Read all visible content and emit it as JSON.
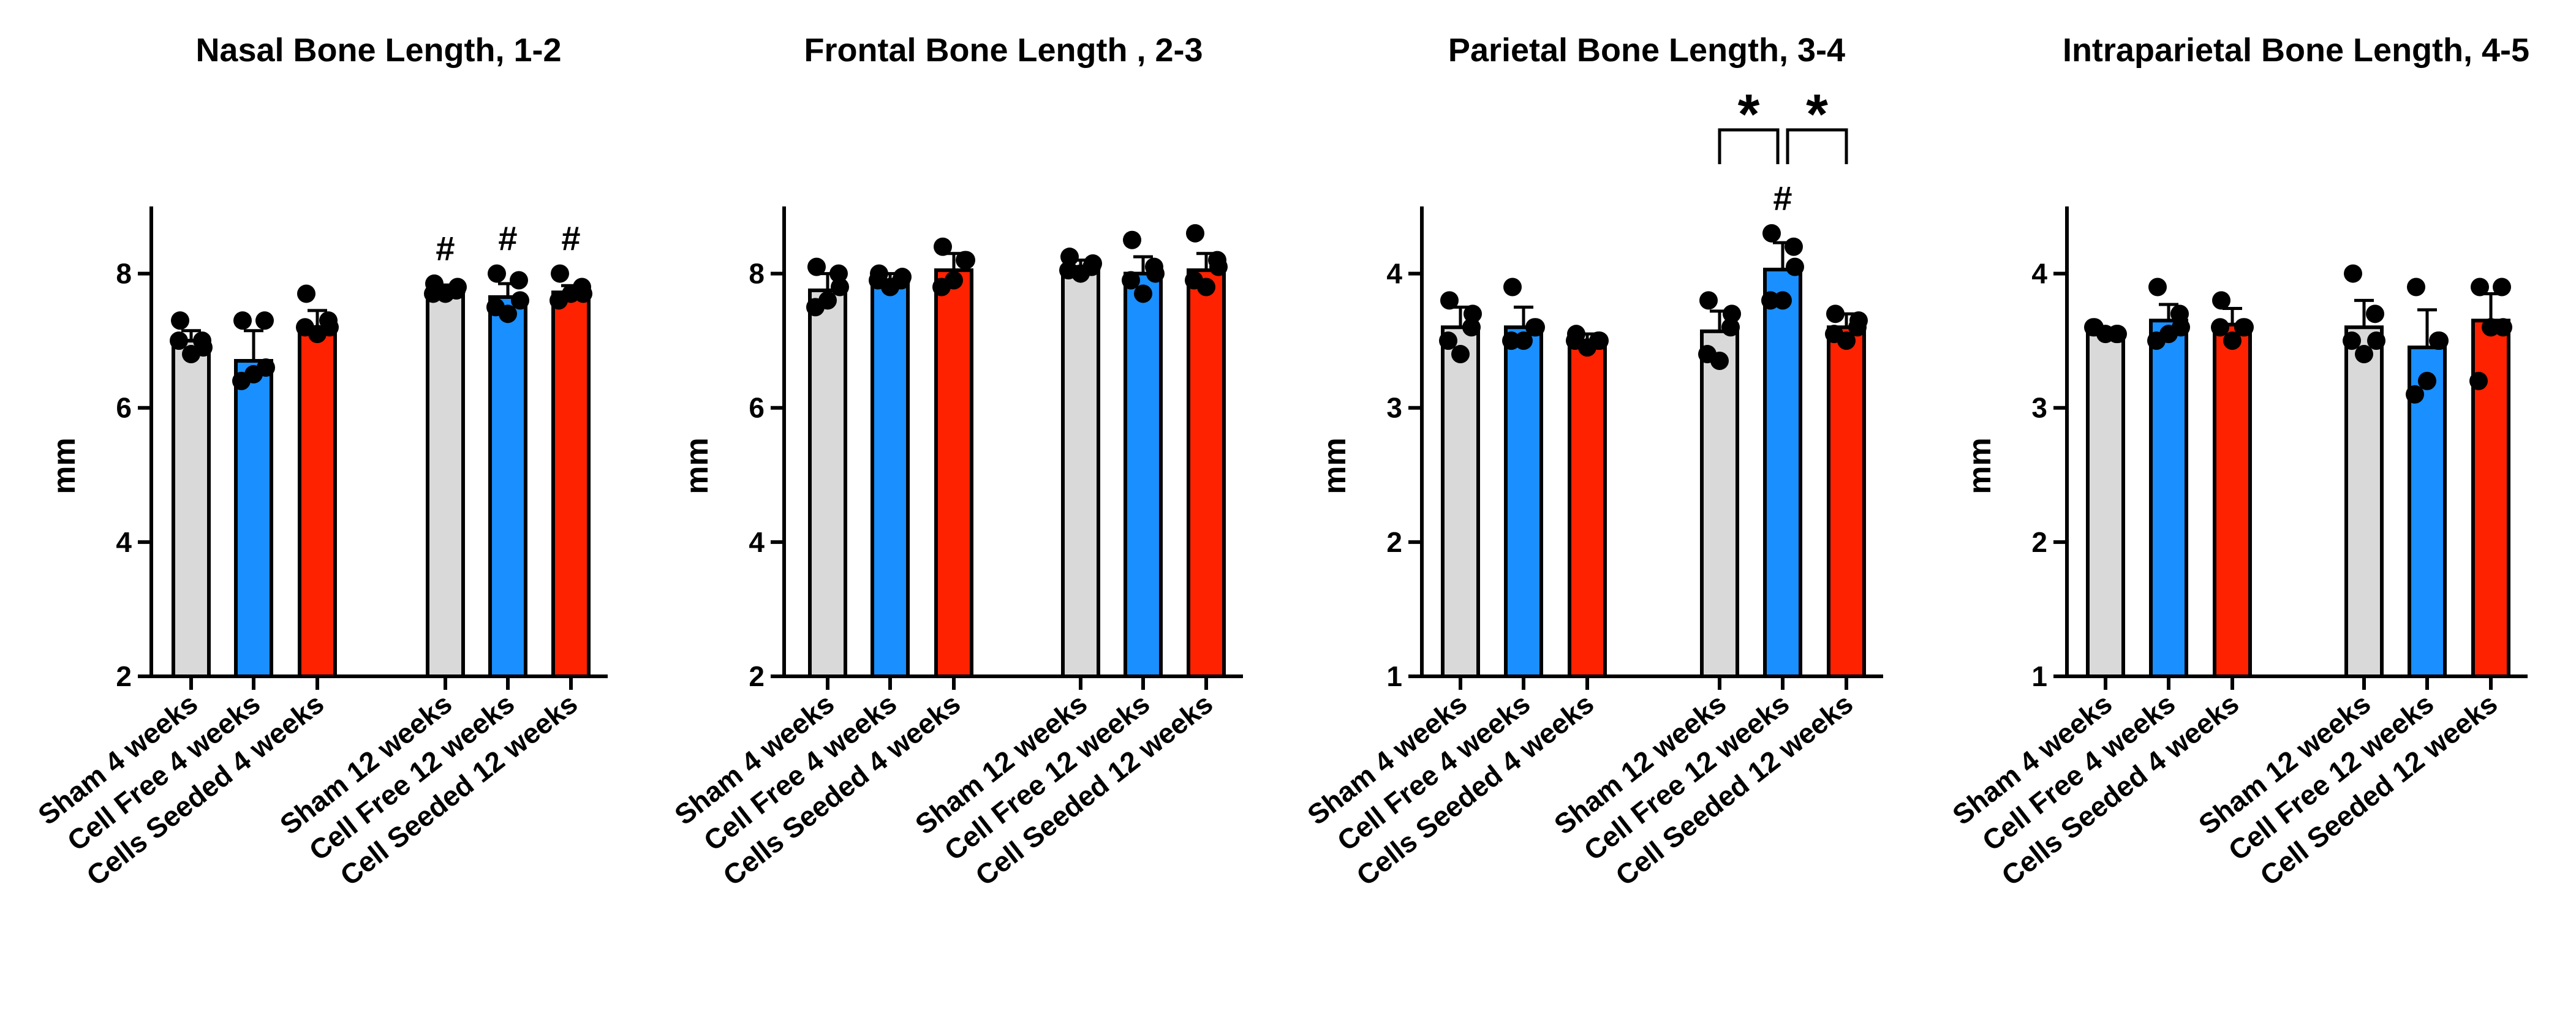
{
  "colors": {
    "sham": "#d9d9d9",
    "cell_free": "#1a8fff",
    "cells_seeded": "#ff2200",
    "outline": "#000000",
    "point": "#000000"
  },
  "chart_data": [
    {
      "type": "bar",
      "title": "Nasal Bone Length, 1-2",
      "ylabel": "mm",
      "ylim": [
        2,
        9
      ],
      "yticks": [
        "2",
        "4",
        "6",
        "8"
      ],
      "categories": [
        "Sham 4 weeks",
        "Cell Free 4 weeks",
        "Cells Seeded 4 weeks",
        "Sham 12 weeks",
        "Cell Free 12 weeks",
        "Cell Seeded 12 weeks"
      ],
      "bar_colors": [
        "sham",
        "cell_free",
        "cells_seeded",
        "sham",
        "cell_free",
        "cells_seeded"
      ],
      "values": [
        7.0,
        6.7,
        7.2,
        7.75,
        7.65,
        7.72
      ],
      "errors": [
        0.15,
        0.45,
        0.25,
        0.08,
        0.2,
        0.1
      ],
      "points": [
        [
          7.3,
          7.0,
          6.8,
          7.0,
          6.9
        ],
        [
          7.3,
          7.3,
          6.5,
          6.4,
          6.6
        ],
        [
          7.7,
          7.3,
          7.1,
          7.2,
          7.2
        ],
        [
          7.85,
          7.75,
          7.7,
          7.7,
          7.8
        ],
        [
          8.0,
          7.9,
          7.4,
          7.5,
          7.6
        ],
        [
          8.0,
          7.8,
          7.7,
          7.6,
          7.7
        ]
      ],
      "markers": [
        "",
        "",
        "",
        "#",
        "#",
        "#"
      ],
      "brackets": []
    },
    {
      "type": "bar",
      "title": "Frontal Bone Length , 2-3",
      "ylabel": "mm",
      "ylim": [
        2,
        9
      ],
      "yticks": [
        "2",
        "4",
        "6",
        "8"
      ],
      "categories": [
        "Sham 4 weeks",
        "Cell Free 4 weeks",
        "Cells Seeded 4 weeks",
        "Sham 12 weeks",
        "Cell Free 12 weeks",
        "Cell Seeded 12 weeks"
      ],
      "bar_colors": [
        "sham",
        "cell_free",
        "cells_seeded",
        "sham",
        "cell_free",
        "cells_seeded"
      ],
      "values": [
        7.75,
        7.9,
        8.05,
        8.1,
        8.0,
        8.05
      ],
      "errors": [
        0.25,
        0.1,
        0.25,
        0.1,
        0.25,
        0.25
      ],
      "points": [
        [
          8.1,
          8.0,
          7.6,
          7.5,
          7.8
        ],
        [
          8.0,
          7.9,
          7.8,
          7.9,
          7.95
        ],
        [
          8.4,
          8.2,
          7.9,
          7.8,
          8.2
        ],
        [
          8.25,
          8.1,
          8.0,
          8.05,
          8.15
        ],
        [
          8.5,
          8.1,
          7.7,
          7.9,
          8.0
        ],
        [
          8.6,
          8.2,
          7.8,
          7.9,
          8.1
        ]
      ],
      "markers": [
        "",
        "",
        "",
        "",
        "",
        ""
      ],
      "brackets": []
    },
    {
      "type": "bar",
      "title": "Parietal Bone Length, 3-4",
      "ylabel": "mm",
      "ylim": [
        1,
        4.5
      ],
      "yticks": [
        "1",
        "2",
        "3",
        "4"
      ],
      "categories": [
        "Sham 4 weeks",
        "Cell Free 4 weeks",
        "Cells Seeded 4 weeks",
        "Sham 12 weeks",
        "Cell Free 12 weeks",
        "Cell Seeded 12 weeks"
      ],
      "bar_colors": [
        "sham",
        "cell_free",
        "cells_seeded",
        "sham",
        "cell_free",
        "cells_seeded"
      ],
      "values": [
        3.6,
        3.6,
        3.5,
        3.57,
        4.03,
        3.6
      ],
      "errors": [
        0.15,
        0.15,
        0.05,
        0.15,
        0.2,
        0.1
      ],
      "points": [
        [
          3.8,
          3.6,
          3.4,
          3.5,
          3.7
        ],
        [
          3.9,
          3.6,
          3.5,
          3.5,
          3.6
        ],
        [
          3.55,
          3.5,
          3.45,
          3.5,
          3.5
        ],
        [
          3.8,
          3.6,
          3.35,
          3.4,
          3.7
        ],
        [
          4.3,
          4.2,
          3.8,
          3.8,
          4.05
        ],
        [
          3.7,
          3.6,
          3.5,
          3.55,
          3.65
        ]
      ],
      "markers": [
        "",
        "",
        "",
        "",
        "#",
        ""
      ],
      "brackets": [
        {
          "from": 3,
          "to": 4,
          "label": "*"
        },
        {
          "from": 4,
          "to": 5,
          "label": "*"
        }
      ]
    },
    {
      "type": "bar",
      "title": "Intraparietal Bone Length, 4-5",
      "ylabel": "mm",
      "ylim": [
        1,
        4.5
      ],
      "yticks": [
        "1",
        "2",
        "3",
        "4"
      ],
      "categories": [
        "Sham 4 weeks",
        "Cell Free 4 weeks",
        "Cells Seeded 4 weeks",
        "Sham 12 weeks",
        "Cell Free 12 weeks",
        "Cell Seeded 12 weeks"
      ],
      "bar_colors": [
        "sham",
        "cell_free",
        "cells_seeded",
        "sham",
        "cell_free",
        "cells_seeded"
      ],
      "values": [
        3.55,
        3.65,
        3.62,
        3.6,
        3.45,
        3.65
      ],
      "errors": [
        0.03,
        0.12,
        0.12,
        0.2,
        0.28,
        0.2
      ],
      "points": [
        [
          3.6,
          3.55,
          3.55,
          3.6,
          3.55
        ],
        [
          3.9,
          3.7,
          3.55,
          3.5,
          3.6
        ],
        [
          3.8,
          3.6,
          3.5,
          3.6,
          3.6
        ],
        [
          4.0,
          3.7,
          3.4,
          3.5,
          3.5
        ],
        [
          3.9,
          3.5,
          3.2,
          3.1,
          3.5
        ],
        [
          3.9,
          3.9,
          3.6,
          3.2,
          3.6
        ]
      ],
      "markers": [
        "",
        "",
        "",
        "",
        "",
        ""
      ],
      "brackets": []
    }
  ]
}
